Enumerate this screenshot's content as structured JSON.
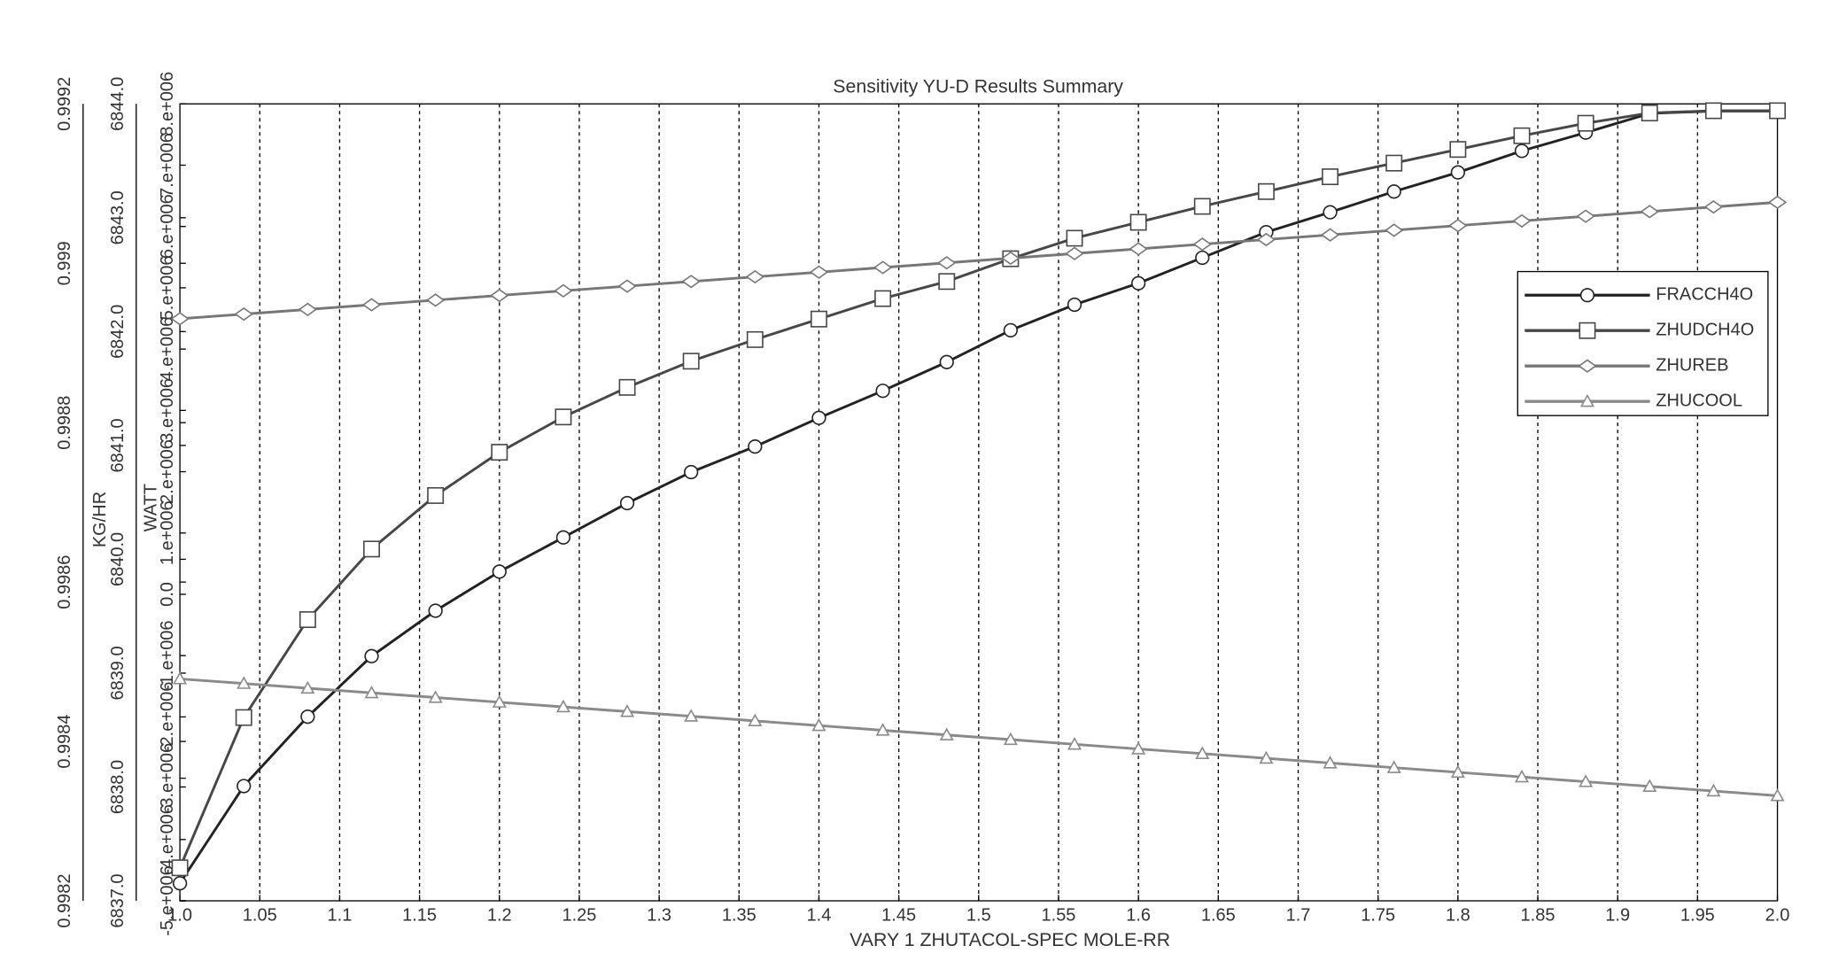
{
  "chart_data": {
    "type": "line",
    "title": "Sensitivity YU-D Results Summary",
    "x_label": "VARY 1 ZHUTACOL-SPEC MOLE-RR",
    "y_label": "KG/HR",
    "y3_label": "WATT",
    "x": [
      1,
      1.04,
      1.08,
      1.12,
      1.16,
      1.2,
      1.24,
      1.28,
      1.32,
      1.36,
      1.4,
      1.44,
      1.48,
      1.52,
      1.56,
      1.6,
      1.64,
      1.68,
      1.72,
      1.76,
      1.8,
      1.84,
      1.88,
      1.92,
      1.96,
      2
    ],
    "xlim": [
      1,
      2
    ],
    "xticks": [
      {
        "value": 1,
        "label": "1.0"
      },
      1.05,
      1.1,
      1.15,
      1.2,
      1.25,
      1.3,
      1.35,
      1.4,
      1.45,
      1.5,
      1.55,
      1.6,
      1.65,
      1.7,
      1.75,
      1.8,
      1.85,
      1.9,
      1.95,
      {
        "value": 2,
        "label": "2.0"
      }
    ],
    "ylim": [
      0.9982,
      0.9992
    ],
    "yticks": [
      0.9982,
      0.9984,
      0.9986,
      0.9988,
      0.999,
      0.9992
    ],
    "y2lim": [
      6837,
      6844
    ],
    "y2ticks": [
      {
        "value": 6837,
        "label": "6837.0"
      },
      {
        "value": 6838,
        "label": "6838.0"
      },
      {
        "value": 6839,
        "label": "6839.0"
      },
      {
        "value": 6840,
        "label": "6840.0"
      },
      {
        "value": 6841,
        "label": "6841.0"
      },
      {
        "value": 6842,
        "label": "6842.0"
      },
      {
        "value": 6843,
        "label": "6843.0"
      },
      {
        "value": 6844,
        "label": "6844.0"
      }
    ],
    "y3lim": [
      -5000000,
      8000000
    ],
    "y3ticks": [
      {
        "value": -5000000,
        "label": "-5.e+006"
      },
      {
        "value": -4000000,
        "label": "-4.e+006"
      },
      {
        "value": -3000000,
        "label": "-3.e+006"
      },
      {
        "value": -2000000,
        "label": "-2.e+006"
      },
      {
        "value": -1000000,
        "label": "-1.e+006"
      },
      {
        "value": 0,
        "label": "0.0"
      },
      {
        "value": 1000000,
        "label": "1.e+006"
      },
      {
        "value": 2000000,
        "label": "2.e+006"
      },
      {
        "value": 3000000,
        "label": "3.e+006"
      },
      {
        "value": 4000000,
        "label": "4.e+006"
      },
      {
        "value": 5000000,
        "label": "5.e+006"
      },
      {
        "value": 6000000,
        "label": "6.e+006"
      },
      {
        "value": 7000000,
        "label": "7.e+006"
      },
      {
        "value": 8000000,
        "label": "8.e+006"
      }
    ],
    "grid": true,
    "legend": "right",
    "series": [
      {
        "name": "FRACCH4O",
        "color": "#222222",
        "marker": "circle",
        "axis": "y",
        "values": [
          0.998222,
          0.998344,
          0.998431,
          0.998507,
          0.998564,
          0.998613,
          0.998656,
          0.998699,
          0.998738,
          0.99877,
          0.998806,
          0.99884,
          0.998876,
          0.998916,
          0.998948,
          0.998975,
          0.999007,
          0.999039,
          0.999064,
          0.99909,
          0.999114,
          0.999141,
          0.999164,
          0.999188,
          0.999191,
          0.999191
        ]
      },
      {
        "name": "ZHUDCH4O",
        "color": "#474747",
        "marker": "square",
        "axis": "y2",
        "values": [
          6837.29,
          6838.61,
          6839.47,
          6840.09,
          6840.56,
          6840.94,
          6841.25,
          6841.51,
          6841.74,
          6841.93,
          6842.11,
          6842.29,
          6842.44,
          6842.64,
          6842.82,
          6842.96,
          6843.1,
          6843.23,
          6843.36,
          6843.48,
          6843.6,
          6843.72,
          6843.83,
          6843.92,
          6843.94,
          6843.94
        ]
      },
      {
        "name": "ZHUREB",
        "color": "#777777",
        "marker": "diamond",
        "axis": "y3",
        "values": [
          4495000,
          4571000,
          4647000,
          4723000,
          4799000,
          4875000,
          4951000,
          5027000,
          5103000,
          5179000,
          5255000,
          5331000,
          5407000,
          5483000,
          5559000,
          5635000,
          5711000,
          5787000,
          5863000,
          5939000,
          6015000,
          6091000,
          6167000,
          6243000,
          6319000,
          6395000
        ]
      },
      {
        "name": "ZHUCOOL",
        "color": "#8a8a8a",
        "marker": "triangle",
        "axis": "y3",
        "values": [
          -1379000,
          -1455000,
          -1532000,
          -1608000,
          -1684000,
          -1760000,
          -1837000,
          -1913000,
          -1989000,
          -2065000,
          -2142000,
          -2218000,
          -2294000,
          -2370000,
          -2447000,
          -2523000,
          -2599000,
          -2675000,
          -2752000,
          -2828000,
          -2904000,
          -2980000,
          -3057000,
          -3133000,
          -3209000,
          -3286000
        ]
      }
    ]
  }
}
